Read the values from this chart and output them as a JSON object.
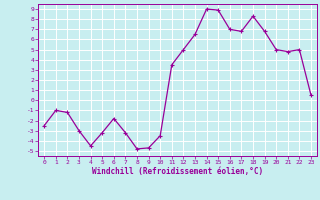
{
  "x": [
    0,
    1,
    2,
    3,
    4,
    5,
    6,
    7,
    8,
    9,
    10,
    11,
    12,
    13,
    14,
    15,
    16,
    17,
    18,
    19,
    20,
    21,
    22,
    23
  ],
  "y": [
    -2.5,
    -1.0,
    -1.2,
    -3.0,
    -4.5,
    -3.2,
    -1.8,
    -3.2,
    -4.8,
    -4.7,
    -3.5,
    3.5,
    5.0,
    6.5,
    9.0,
    8.9,
    7.0,
    6.8,
    8.3,
    6.8,
    5.0,
    4.8,
    5.0,
    0.5
  ],
  "xlim": [
    -0.5,
    23.5
  ],
  "ylim": [
    -5.5,
    9.5
  ],
  "xticks": [
    0,
    1,
    2,
    3,
    4,
    5,
    6,
    7,
    8,
    9,
    10,
    11,
    12,
    13,
    14,
    15,
    16,
    17,
    18,
    19,
    20,
    21,
    22,
    23
  ],
  "yticks": [
    -5,
    -4,
    -3,
    -2,
    -1,
    0,
    1,
    2,
    3,
    4,
    5,
    6,
    7,
    8,
    9
  ],
  "xlabel": "Windchill (Refroidissement éolien,°C)",
  "line_color": "#990099",
  "marker_color": "#990099",
  "bg_color": "#c8eef0",
  "grid_color": "#ffffff"
}
